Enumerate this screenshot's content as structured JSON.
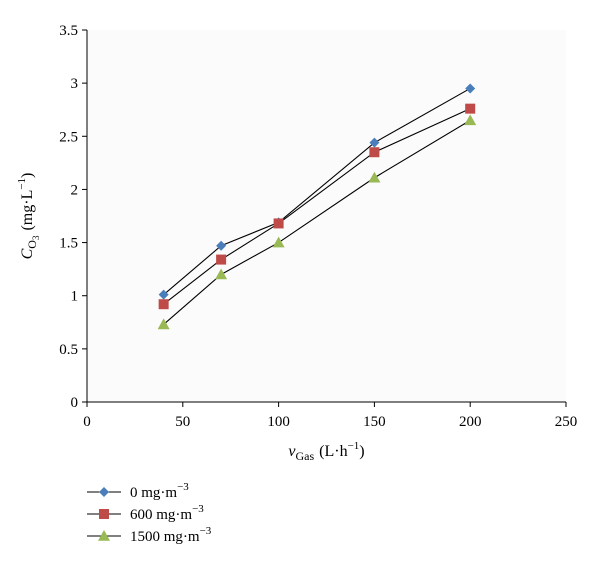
{
  "chart_data": {
    "type": "line",
    "title": "",
    "xlim": [
      0,
      250
    ],
    "ylim": [
      0,
      3.5
    ],
    "xticks": [
      "0",
      "50",
      "100",
      "150",
      "200",
      "250"
    ],
    "yticks": [
      "0",
      "0.5",
      "1",
      "1.5",
      "2",
      "2.5",
      "3",
      "3.5"
    ],
    "xlabel": {
      "main": "v",
      "sub": "Gas",
      "unit": "(L·h",
      "sup": "−1",
      "close": ")"
    },
    "ylabel": {
      "main": "C",
      "sub": "O",
      "subsub": "3",
      "unit": "(mg·L",
      "sup": "−1",
      "close": ")"
    },
    "grid": false,
    "legend_position": "bottom-left",
    "series": [
      {
        "name": "0 mg·m",
        "name_sup": "−3",
        "color": "#4a7ebb",
        "marker": "diamond",
        "x": [
          40,
          70,
          100,
          150,
          200
        ],
        "y": [
          1.01,
          1.47,
          1.69,
          2.44,
          2.95
        ]
      },
      {
        "name": "600 mg·m",
        "name_sup": "−3",
        "color": "#be4b48",
        "marker": "square",
        "x": [
          40,
          70,
          100,
          150,
          200
        ],
        "y": [
          0.92,
          1.34,
          1.68,
          2.35,
          2.76
        ]
      },
      {
        "name": "1500 mg·m",
        "name_sup": "−3",
        "color": "#98b954",
        "marker": "triangle",
        "x": [
          40,
          70,
          100,
          150,
          200
        ],
        "y": [
          0.73,
          1.2,
          1.5,
          2.11,
          2.65
        ]
      }
    ]
  }
}
